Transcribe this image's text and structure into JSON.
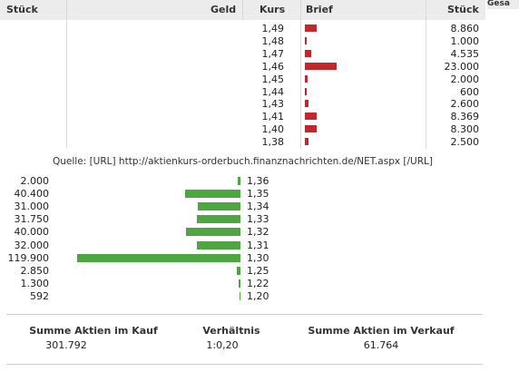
{
  "header": {
    "stueck_left": "Stück",
    "geld": "Geld",
    "kurs": "Kurs",
    "brief": "Brief",
    "stueck_right": "Stück",
    "gesamt": "Gesa"
  },
  "ask_rows": [
    {
      "kurs": "1,49",
      "stueck": "8.860",
      "volume": 8860
    },
    {
      "kurs": "1,48",
      "stueck": "1.000",
      "volume": 1000
    },
    {
      "kurs": "1,47",
      "stueck": "4.535",
      "volume": 4535
    },
    {
      "kurs": "1,46",
      "stueck": "23.000",
      "volume": 23000
    },
    {
      "kurs": "1,45",
      "stueck": "2.000",
      "volume": 2000
    },
    {
      "kurs": "1,44",
      "stueck": "600",
      "volume": 600
    },
    {
      "kurs": "1,43",
      "stueck": "2.600",
      "volume": 2600
    },
    {
      "kurs": "1,41",
      "stueck": "8.369",
      "volume": 8369
    },
    {
      "kurs": "1,40",
      "stueck": "8.300",
      "volume": 8300
    },
    {
      "kurs": "1,38",
      "stueck": "2.500",
      "volume": 2500
    }
  ],
  "source_text": "Quelle: [URL] http://aktienkurs-orderbuch.finanznachrichten.de/NET.aspx [/URL]",
  "bid_rows": [
    {
      "stueck": "2.000",
      "kurs": "1,36",
      "volume": 2000
    },
    {
      "stueck": "40.400",
      "kurs": "1,35",
      "volume": 40400
    },
    {
      "stueck": "31.000",
      "kurs": "1,34",
      "volume": 31000
    },
    {
      "stueck": "31.750",
      "kurs": "1,33",
      "volume": 31750
    },
    {
      "stueck": "40.000",
      "kurs": "1,32",
      "volume": 40000
    },
    {
      "stueck": "32.000",
      "kurs": "1,31",
      "volume": 32000
    },
    {
      "stueck": "119.900",
      "kurs": "1,30",
      "volume": 119900
    },
    {
      "stueck": "2.850",
      "kurs": "1,25",
      "volume": 2850
    },
    {
      "stueck": "1.300",
      "kurs": "1,22",
      "volume": 1300
    },
    {
      "stueck": "592",
      "kurs": "1,20",
      "volume": 592
    }
  ],
  "summary": {
    "kauf_label": "Summe Aktien im Kauf",
    "kauf_value": "301.792",
    "verhaeltnis_label": "Verhältnis",
    "verhaeltnis_value": "1:0,20",
    "verkauf_label": "Summe Aktien im Verkauf",
    "verkauf_value": "61.764"
  },
  "colors": {
    "ask_bar": "#c0282d",
    "bid_bar": "#4ea642"
  }
}
